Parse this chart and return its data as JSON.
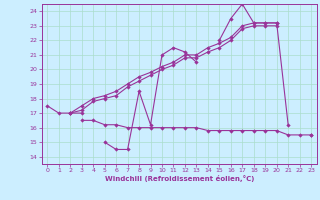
{
  "bg_color": "#cceeff",
  "line_color": "#993399",
  "grid_color": "#aaddcc",
  "xlabel": "Windchill (Refroidissement éolien,°C)",
  "xlim": [
    -0.5,
    23.5
  ],
  "ylim": [
    13.5,
    24.5
  ],
  "xticks": [
    0,
    1,
    2,
    3,
    4,
    5,
    6,
    7,
    8,
    9,
    10,
    11,
    12,
    13,
    14,
    15,
    16,
    17,
    18,
    19,
    20,
    21,
    22,
    23
  ],
  "yticks": [
    14,
    15,
    16,
    17,
    18,
    19,
    20,
    21,
    22,
    23,
    24
  ],
  "lines": [
    {
      "x": [
        0,
        1,
        2,
        3,
        4,
        5,
        6,
        7,
        8,
        9,
        10,
        11,
        12,
        13,
        14,
        15,
        16,
        17,
        18,
        19,
        20,
        21,
        22,
        23
      ],
      "y": [
        17.5,
        17.0,
        17.0,
        17.0,
        null,
        15.0,
        14.5,
        14.5,
        18.5,
        16.2,
        21.0,
        21.5,
        21.2,
        20.5,
        null,
        22.0,
        23.5,
        24.5,
        23.2,
        23.2,
        23.2,
        16.2,
        null,
        15.5
      ],
      "marker": true
    },
    {
      "x": [
        3,
        4,
        5,
        6,
        7,
        8,
        9,
        10,
        11,
        12,
        13,
        14,
        15,
        16,
        17,
        18,
        19,
        20,
        21,
        22,
        23
      ],
      "y": [
        16.5,
        16.5,
        16.2,
        16.2,
        16.0,
        16.0,
        16.0,
        16.0,
        16.0,
        16.0,
        16.0,
        15.8,
        15.8,
        15.8,
        15.8,
        15.8,
        15.8,
        15.8,
        15.5,
        15.5,
        15.5
      ],
      "marker": true
    },
    {
      "x": [
        2,
        3,
        4,
        5,
        6,
        7,
        8,
        9,
        10,
        11,
        12,
        13,
        14,
        15,
        16,
        17,
        18,
        19,
        20
      ],
      "y": [
        17.0,
        17.5,
        18.0,
        18.2,
        18.5,
        19.0,
        19.5,
        19.8,
        20.2,
        20.5,
        21.0,
        21.0,
        21.5,
        21.8,
        22.2,
        23.0,
        23.2,
        23.2,
        23.2
      ],
      "marker": true
    },
    {
      "x": [
        2,
        3,
        4,
        5,
        6,
        7,
        8,
        9,
        10,
        11,
        12,
        13,
        14,
        15,
        16,
        17,
        18,
        19,
        20
      ],
      "y": [
        17.0,
        17.2,
        17.8,
        18.0,
        18.2,
        18.8,
        19.2,
        19.6,
        20.0,
        20.3,
        20.8,
        20.8,
        21.2,
        21.5,
        22.0,
        22.8,
        23.0,
        23.0,
        23.0
      ],
      "marker": true
    }
  ]
}
